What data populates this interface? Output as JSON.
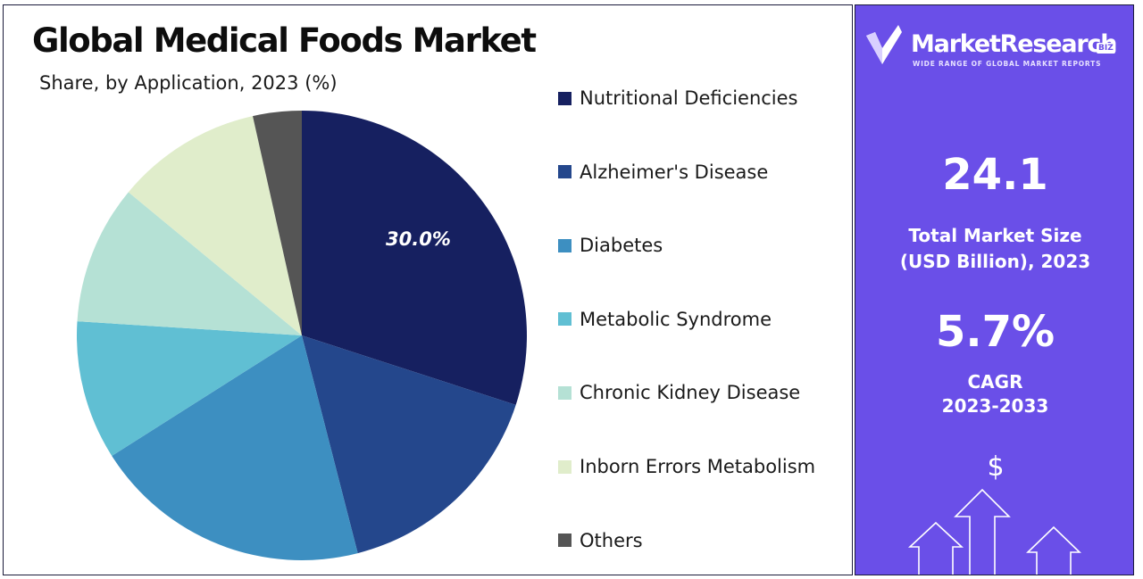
{
  "header": {
    "title": "Global Medical Foods Market",
    "subtitle": "Share, by Application, 2023 (%)"
  },
  "chart_data": {
    "type": "pie",
    "categories": [
      "Nutritional Deficiencies",
      "Alzheimer's Disease",
      "Diabetes",
      "Metabolic Syndrome",
      "Chronic Kidney Disease",
      "Inborn Errors Metabolism",
      "Others"
    ],
    "values": [
      30.0,
      16.0,
      20.0,
      10.0,
      10.0,
      10.5,
      3.5
    ],
    "colors": [
      "#162060",
      "#24478c",
      "#3d8fc1",
      "#60bfd3",
      "#b5e1d5",
      "#e0edcb",
      "#555555"
    ],
    "data_labels": [
      {
        "category": "Nutritional Deficiencies",
        "text": "30.0%"
      }
    ],
    "legend_position": "right"
  },
  "brand": {
    "name": "MarketResearch",
    "badge": "BIZ",
    "tagline": "WIDE RANGE OF GLOBAL MARKET REPORTS",
    "logo_icon": "check-shield-icon"
  },
  "stats": {
    "market_size_value": "24.1",
    "market_size_label_line1": "Total Market Size",
    "market_size_label_line2": "(USD Billion), 2023",
    "cagr_value": "5.7%",
    "cagr_label_line1": "CAGR",
    "cagr_label_line2": "2023-2033"
  },
  "graphic": {
    "currency_symbol": "$",
    "icon": "growth-arrows-icon"
  },
  "colors": {
    "panel_bg": "#6a4fe8",
    "panel_border": "#1a1a3a"
  }
}
